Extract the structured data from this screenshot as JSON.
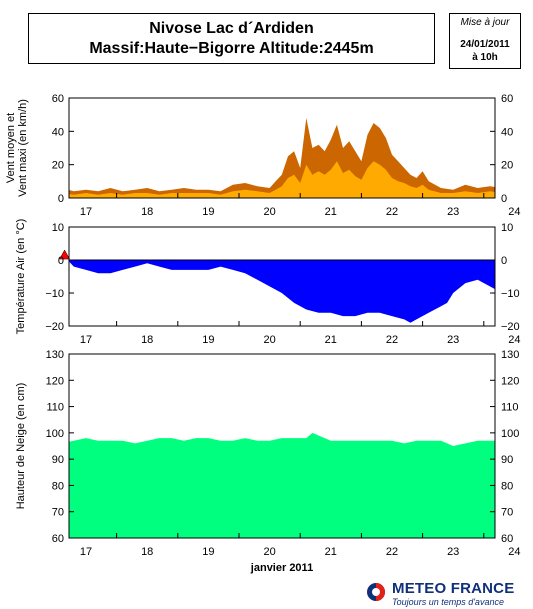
{
  "header": {
    "title_line1": "Nivose Lac d´Ardiden",
    "title_line2": "Massif:Haute−Bigorre Altitude:2445m"
  },
  "update": {
    "label": "Mise à jour",
    "date": "24/01/2011",
    "time": "à 10h"
  },
  "footer": {
    "brand": "METEO FRANCE",
    "tagline": "Toujours un temps d'avance"
  },
  "colors": {
    "wind_max": "#cc6600",
    "wind_mean": "#ffaa00",
    "temperature": "#0000ff",
    "snow": "#00ff7f",
    "marker": "#ff0000"
  },
  "chart_data": [
    {
      "type": "area",
      "ylabel": "Vent moyen et\nVent maxi (en km/h)",
      "ylim": [
        0,
        60
      ],
      "yticks": [
        "0",
        "20",
        "40",
        "60"
      ],
      "xticks": [
        "17",
        "18",
        "19",
        "20",
        "21",
        "22",
        "23",
        "24"
      ],
      "x_day_start": 16.6,
      "x_day_end": 24.3,
      "series": [
        {
          "key": "max",
          "x": [
            16.6,
            16.8,
            17.0,
            17.2,
            17.4,
            17.6,
            17.8,
            18.0,
            18.2,
            18.4,
            18.6,
            18.8,
            19.0,
            19.2,
            19.4,
            19.6,
            19.8,
            20.0,
            20.1,
            20.2,
            20.3,
            20.4,
            20.5,
            20.6,
            20.7,
            20.8,
            20.9,
            21.0,
            21.1,
            21.2,
            21.3,
            21.4,
            21.5,
            21.6,
            21.7,
            21.8,
            21.9,
            22.0,
            22.1,
            22.2,
            22.3,
            22.4,
            22.5,
            22.6,
            22.8,
            23.0,
            23.2,
            23.4,
            23.6,
            23.8,
            24.0,
            24.1,
            24.2,
            24.3
          ],
          "values": [
            6,
            4,
            5,
            4,
            6,
            4,
            5,
            6,
            4,
            5,
            6,
            5,
            5,
            4,
            8,
            9,
            7,
            6,
            10,
            14,
            25,
            28,
            18,
            48,
            30,
            32,
            28,
            35,
            44,
            30,
            34,
            28,
            22,
            38,
            45,
            42,
            36,
            26,
            22,
            18,
            14,
            12,
            16,
            10,
            6,
            5,
            8,
            6,
            7,
            6,
            4,
            12,
            8,
            3
          ]
        },
        {
          "key": "mean",
          "x": [
            16.6,
            16.8,
            17.0,
            17.2,
            17.4,
            17.6,
            17.8,
            18.0,
            18.2,
            18.4,
            18.6,
            18.8,
            19.0,
            19.2,
            19.4,
            19.6,
            19.8,
            20.0,
            20.1,
            20.2,
            20.3,
            20.4,
            20.5,
            20.6,
            20.7,
            20.8,
            20.9,
            21.0,
            21.1,
            21.2,
            21.3,
            21.4,
            21.5,
            21.6,
            21.7,
            21.8,
            21.9,
            22.0,
            22.1,
            22.2,
            22.3,
            22.4,
            22.5,
            22.6,
            22.8,
            23.0,
            23.2,
            23.4,
            23.6,
            23.8,
            24.0,
            24.1,
            24.2,
            24.3
          ],
          "values": [
            3,
            2,
            3,
            2,
            3,
            2,
            3,
            3,
            2,
            3,
            3,
            3,
            3,
            2,
            4,
            5,
            4,
            3,
            5,
            7,
            12,
            14,
            9,
            20,
            14,
            16,
            14,
            17,
            22,
            15,
            17,
            13,
            11,
            18,
            22,
            20,
            17,
            12,
            10,
            9,
            7,
            6,
            8,
            5,
            3,
            3,
            4,
            3,
            4,
            3,
            2,
            6,
            4,
            2
          ]
        }
      ]
    },
    {
      "type": "area",
      "ylabel": "Température Air (en °C)",
      "ylim": [
        -20,
        10
      ],
      "yticks": [
        "−20",
        "−10",
        "0",
        "10"
      ],
      "xticks": [
        "17",
        "18",
        "19",
        "20",
        "21",
        "22",
        "23",
        "24"
      ],
      "x_day_start": 16.6,
      "x_day_end": 24.3,
      "marker": {
        "x": 16.65,
        "y": 1.5
      },
      "series": [
        {
          "key": "temperature",
          "x": [
            16.7,
            16.8,
            17.0,
            17.2,
            17.4,
            17.6,
            17.8,
            18.0,
            18.2,
            18.4,
            18.6,
            18.8,
            19.0,
            19.2,
            19.4,
            19.6,
            19.8,
            20.0,
            20.2,
            20.4,
            20.6,
            20.8,
            21.0,
            21.2,
            21.4,
            21.6,
            21.8,
            22.0,
            22.2,
            22.3,
            22.4,
            22.6,
            22.8,
            22.9,
            23.0,
            23.2,
            23.4,
            23.6,
            23.8,
            24.0,
            24.2,
            24.3
          ],
          "values": [
            0,
            -2,
            -3,
            -4,
            -4,
            -3,
            -2,
            -1,
            -2,
            -3,
            -3,
            -3,
            -3,
            -2,
            -3,
            -4,
            -6,
            -8,
            -10,
            -13,
            -15,
            -16,
            -16,
            -17,
            -17,
            -16,
            -16,
            -17,
            -18,
            -19,
            -18,
            -16,
            -14,
            -13,
            -10,
            -7,
            -6,
            -8,
            -10,
            -11,
            -10,
            -10
          ]
        }
      ]
    },
    {
      "type": "area",
      "ylabel": "Hauteur de Neige (en cm)",
      "xlabel": "janvier 2011",
      "ylim": [
        60,
        130
      ],
      "yticks": [
        "60",
        "70",
        "80",
        "90",
        "100",
        "110",
        "120",
        "130"
      ],
      "xticks": [
        "17",
        "18",
        "19",
        "20",
        "21",
        "22",
        "23",
        "24"
      ],
      "x_day_start": 16.6,
      "x_day_end": 24.3,
      "series": [
        {
          "key": "snow",
          "x": [
            16.6,
            16.8,
            17.0,
            17.2,
            17.4,
            17.6,
            17.8,
            18.0,
            18.2,
            18.4,
            18.6,
            18.8,
            19.0,
            19.2,
            19.4,
            19.6,
            19.8,
            20.0,
            20.2,
            20.4,
            20.6,
            20.7,
            20.8,
            21.0,
            21.2,
            21.4,
            21.6,
            21.8,
            22.0,
            22.2,
            22.4,
            22.6,
            22.8,
            23.0,
            23.2,
            23.4,
            23.6,
            23.8,
            24.0,
            24.2,
            24.3
          ],
          "values": [
            96,
            97,
            98,
            97,
            97,
            97,
            96,
            97,
            98,
            98,
            97,
            98,
            98,
            97,
            97,
            98,
            97,
            97,
            98,
            98,
            98,
            100,
            99,
            97,
            97,
            97,
            97,
            97,
            97,
            96,
            97,
            97,
            97,
            95,
            96,
            97,
            97,
            97,
            97,
            97,
            99
          ]
        }
      ]
    }
  ]
}
